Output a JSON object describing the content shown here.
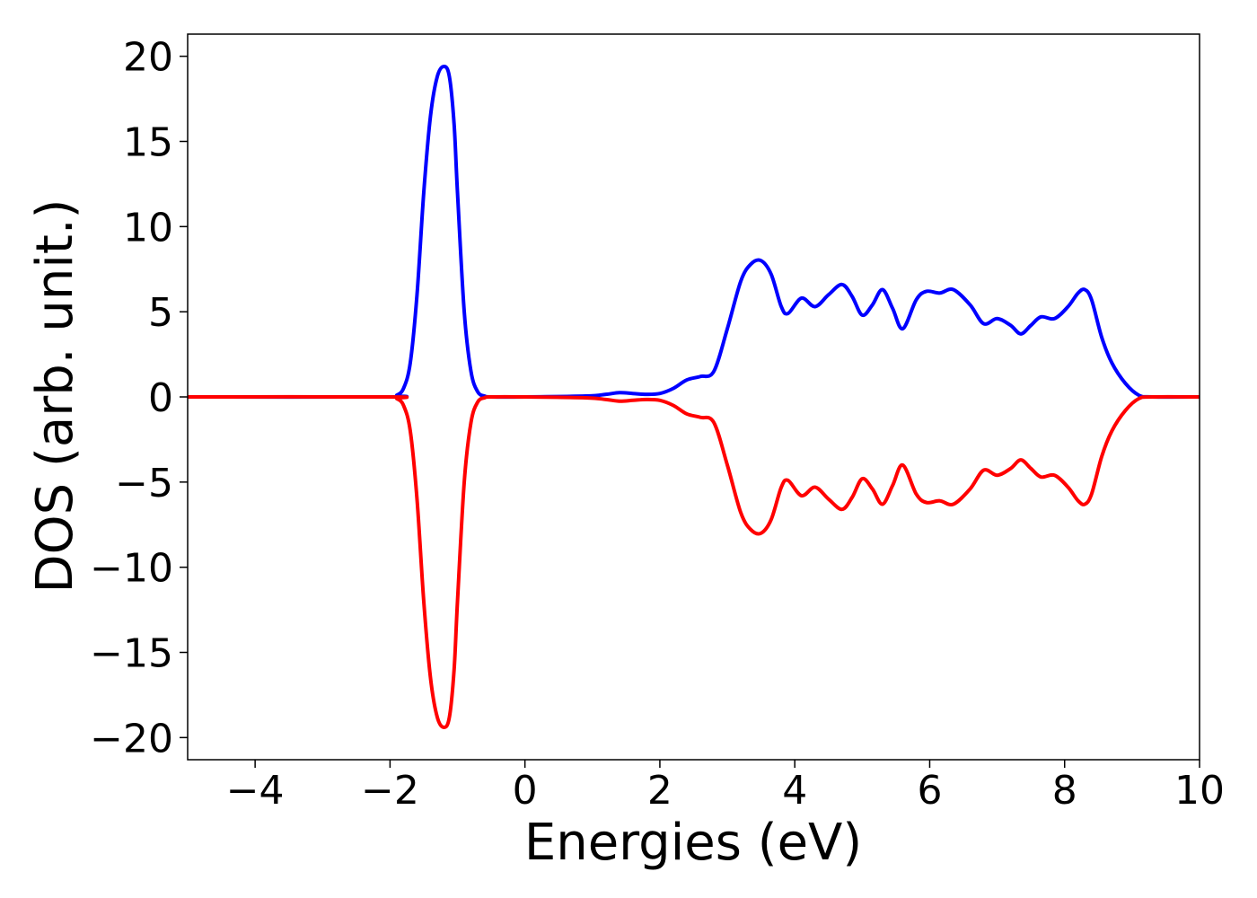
{
  "chart_data": {
    "type": "line",
    "title": "",
    "xlabel": "Energies (eV)",
    "ylabel": "DOS (arb. unit.)",
    "xlim": [
      -5,
      10
    ],
    "ylim": [
      -21.3,
      21.3
    ],
    "xticks": [
      -4,
      -2,
      0,
      2,
      4,
      6,
      8,
      10
    ],
    "xtick_labels": [
      "−4",
      "−2",
      "0",
      "2",
      "4",
      "6",
      "8",
      "10"
    ],
    "yticks": [
      20,
      15,
      10,
      5,
      0,
      -5,
      -10,
      -15,
      -20
    ],
    "ytick_labels": [
      "20",
      "15",
      "10",
      "5",
      "0",
      "−5",
      "−10",
      "−15",
      "−20"
    ],
    "grid": false,
    "legend": "none",
    "series": [
      {
        "color": "#0000ff",
        "x": [
          -5.0,
          -2.0,
          -1.9,
          -1.8,
          -1.7,
          -1.6,
          -1.5,
          -1.4,
          -1.3,
          -1.2,
          -1.12,
          -1.05,
          -1.0,
          -0.9,
          -0.8,
          -0.7,
          -0.6,
          -0.5,
          0.0,
          0.9,
          1.2,
          1.4,
          1.6,
          1.8,
          2.0,
          2.2,
          2.4,
          2.6,
          2.8,
          3.0,
          3.2,
          3.35,
          3.5,
          3.65,
          3.8,
          3.9,
          4.1,
          4.3,
          4.5,
          4.7,
          4.85,
          5.0,
          5.15,
          5.3,
          5.45,
          5.6,
          5.8,
          5.95,
          6.15,
          6.35,
          6.6,
          6.8,
          7.0,
          7.2,
          7.35,
          7.5,
          7.65,
          7.85,
          8.05,
          8.2,
          8.3,
          8.4,
          8.55,
          8.7,
          8.9,
          9.1,
          9.3,
          10.0
        ],
        "values": [
          0.0,
          0.0,
          0.1,
          0.5,
          2.0,
          6.0,
          12.0,
          16.5,
          18.8,
          19.4,
          18.8,
          16.0,
          12.0,
          5.0,
          1.5,
          0.3,
          0.05,
          0.0,
          0.0,
          0.05,
          0.15,
          0.25,
          0.2,
          0.15,
          0.2,
          0.5,
          1.0,
          1.2,
          1.5,
          4.0,
          6.8,
          7.8,
          8.0,
          7.2,
          5.3,
          4.9,
          5.8,
          5.3,
          6.0,
          6.6,
          5.9,
          4.8,
          5.4,
          6.3,
          5.2,
          4.0,
          5.7,
          6.2,
          6.1,
          6.3,
          5.4,
          4.3,
          4.6,
          4.2,
          3.7,
          4.2,
          4.7,
          4.6,
          5.3,
          6.1,
          6.3,
          5.7,
          3.5,
          2.0,
          0.8,
          0.1,
          0.0,
          0.0
        ]
      },
      {
        "color": "#ff0000",
        "x": [
          -5.0,
          -2.0,
          -1.9,
          -1.8,
          -1.7,
          -1.6,
          -1.5,
          -1.4,
          -1.3,
          -1.2,
          -1.12,
          -1.05,
          -1.0,
          -0.9,
          -0.8,
          -0.7,
          -0.6,
          -0.5,
          0.0,
          0.9,
          1.2,
          1.4,
          1.6,
          1.8,
          2.0,
          2.2,
          2.4,
          2.6,
          2.8,
          3.0,
          3.2,
          3.35,
          3.5,
          3.65,
          3.8,
          3.9,
          4.1,
          4.3,
          4.5,
          4.7,
          4.85,
          5.0,
          5.15,
          5.3,
          5.45,
          5.6,
          5.8,
          5.95,
          6.15,
          6.35,
          6.6,
          6.8,
          7.0,
          7.2,
          7.35,
          7.5,
          7.65,
          7.85,
          8.05,
          8.2,
          8.3,
          8.4,
          8.55,
          8.7,
          8.9,
          9.1,
          9.3,
          10.0
        ],
        "values": [
          0.0,
          0.0,
          -0.1,
          -0.5,
          -2.0,
          -6.0,
          -12.0,
          -16.5,
          -18.8,
          -19.4,
          -18.8,
          -16.0,
          -12.0,
          -5.0,
          -1.5,
          -0.3,
          -0.05,
          0.0,
          0.0,
          -0.05,
          -0.15,
          -0.25,
          -0.2,
          -0.15,
          -0.2,
          -0.5,
          -1.0,
          -1.2,
          -1.5,
          -4.0,
          -6.8,
          -7.8,
          -8.0,
          -7.2,
          -5.3,
          -4.9,
          -5.8,
          -5.3,
          -6.0,
          -6.6,
          -5.9,
          -4.8,
          -5.4,
          -6.3,
          -5.2,
          -4.0,
          -5.7,
          -6.2,
          -6.1,
          -6.3,
          -5.4,
          -4.3,
          -4.6,
          -4.2,
          -3.7,
          -4.2,
          -4.7,
          -4.6,
          -5.3,
          -6.1,
          -6.3,
          -5.7,
          -3.5,
          -2.0,
          -0.8,
          -0.1,
          0.0,
          0.0
        ]
      }
    ]
  }
}
